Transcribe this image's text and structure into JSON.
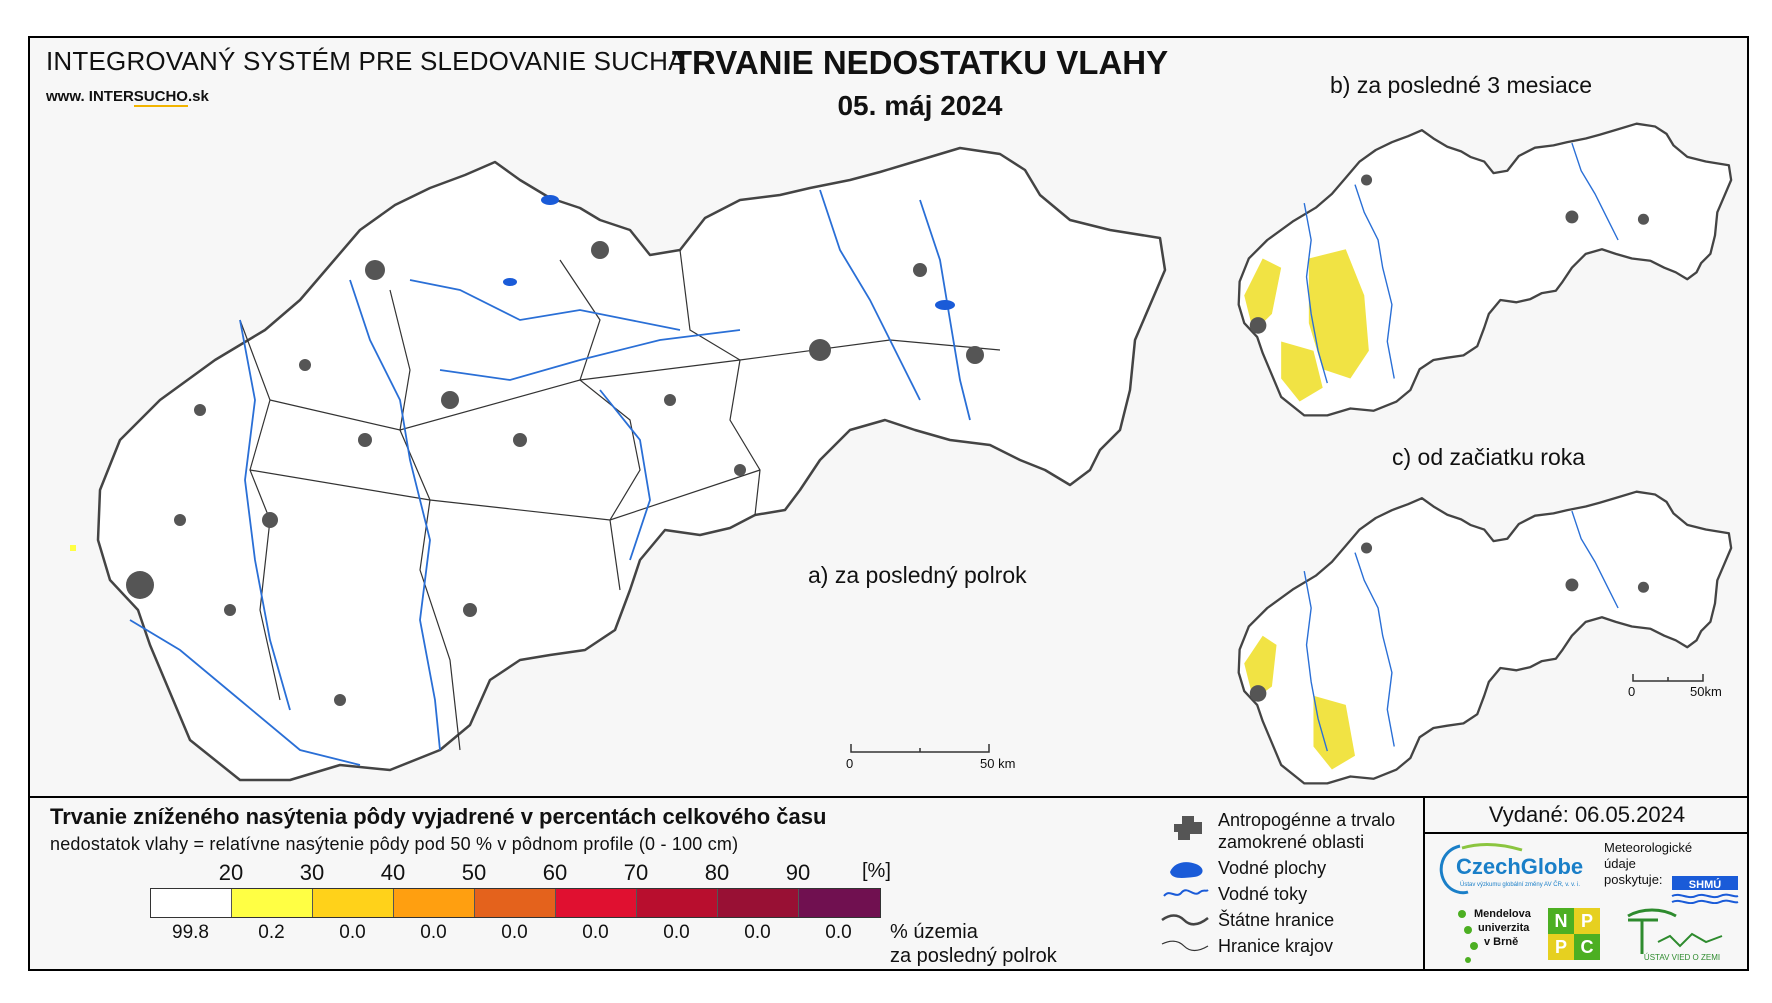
{
  "header": {
    "system_title": "INTEGROVANÝ SYSTÉM PRE SLEDOVANIE SUCHA",
    "website_prefix": "www. INTER",
    "website_highlight": "SUCHO",
    "website_suffix": ".sk",
    "title": "TRVANIE NEDOSTATKU VLAHY",
    "date": "05. máj 2024"
  },
  "maps": {
    "main_label": "a) za posledný polrok",
    "b_label": "b) za posledné 3 mesiace",
    "c_label": "c) od začiatku roka",
    "main_scale": {
      "start": "0",
      "end": "50 km"
    },
    "small_scale": {
      "start": "0",
      "end": "50km"
    }
  },
  "legend": {
    "title": "Trvanie zníženého nasýtenia pôdy vyjadrené v percentách celkového času",
    "subtitle": "nedostatok vlahy = relatívne nasýtenie pôdy pod 50 % v pôdnom profile (0 - 100 cm)",
    "unit": "[%]",
    "thresholds": [
      "20",
      "30",
      "40",
      "50",
      "60",
      "70",
      "80",
      "90"
    ],
    "colors": [
      "#ffffff",
      "#ffff44",
      "#ffd21a",
      "#ff9f10",
      "#e4621c",
      "#e01030",
      "#b80e2e",
      "#981034",
      "#701050"
    ],
    "percentages": [
      "99.8",
      "0.2",
      "0.0",
      "0.0",
      "0.0",
      "0.0",
      "0.0",
      "0.0",
      "0.0"
    ],
    "area_label_1": "% územia",
    "area_label_2": "za posledný polrok"
  },
  "symbols": {
    "anthropogenic_1": "Antropogénne a trvalo",
    "anthropogenic_2": "zamokrené oblasti",
    "water_bodies": "Vodné plochy",
    "water_streams": "Vodné toky",
    "state_border": "Štátne hranice",
    "region_border": "Hranice krajov"
  },
  "credits": {
    "issued": "Vydané: 06.05.2024",
    "czechglobe": "CzechGlobe",
    "czechglobe_sub": "Ústav výzkumu globální změny AV ČR, v. v. i.",
    "meteo_1": "Meteorologické",
    "meteo_2": "údaje",
    "meteo_3": "poskytuje:",
    "shmu": "SHMÚ",
    "mendel_1": "Mendelova",
    "mendel_2": "univerzita",
    "mendel_3": "v Brně",
    "nppc": [
      "N",
      "P",
      "P",
      "C"
    ],
    "ustav": "ÚSTAV VIED O ZEMI"
  }
}
